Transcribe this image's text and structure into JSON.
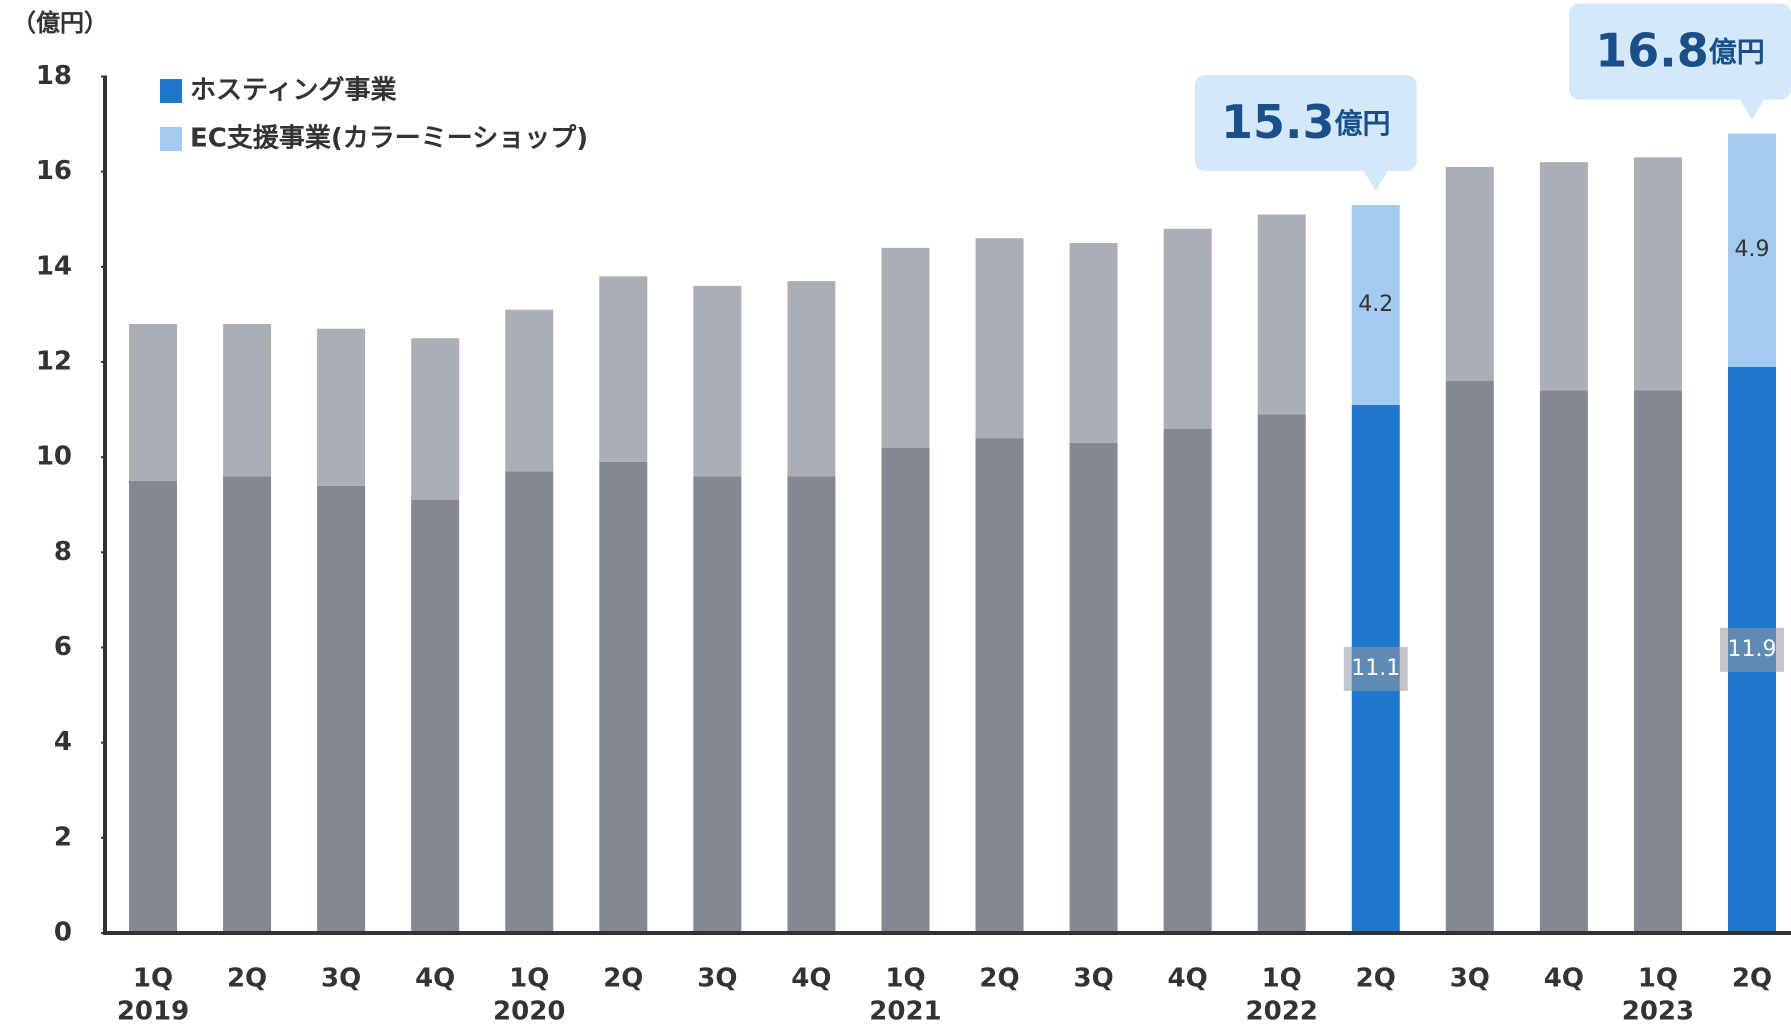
{
  "chart_data": {
    "type": "stacked_bar",
    "unit_label": "（億円）",
    "categories": [
      "1Q",
      "2Q",
      "3Q",
      "4Q",
      "1Q",
      "2Q",
      "3Q",
      "4Q",
      "1Q",
      "2Q",
      "3Q",
      "4Q",
      "1Q",
      "2Q",
      "3Q",
      "4Q",
      "1Q",
      "2Q"
    ],
    "x_group_labels": [
      "2019",
      null,
      null,
      null,
      "2020",
      null,
      null,
      null,
      "2021",
      null,
      null,
      null,
      "2022",
      null,
      null,
      null,
      "2023",
      null
    ],
    "series": [
      {
        "name": "ホスティング事業",
        "color": "#1f78cc",
        "colors": [
          "#838892",
          "#838892",
          "#838892",
          "#838892",
          "#838892",
          "#838892",
          "#838892",
          "#838892",
          "#838892",
          "#838892",
          "#838892",
          "#838892",
          "#838892",
          "#1f78cc",
          "#838892",
          "#838892",
          "#838892",
          "#1f78cc"
        ],
        "values": [
          9.5,
          9.6,
          9.4,
          9.1,
          9.7,
          9.9,
          9.6,
          9.6,
          10.2,
          10.4,
          10.3,
          10.6,
          10.9,
          11.1,
          11.6,
          11.4,
          11.4,
          11.9
        ],
        "value_labels": [
          null,
          null,
          null,
          null,
          null,
          null,
          null,
          null,
          null,
          null,
          null,
          null,
          null,
          "11.1",
          null,
          null,
          null,
          "11.9"
        ]
      },
      {
        "name": "EC支援事業(カラーミーショップ)",
        "color": "#a3cbef",
        "colors": [
          "#acaeb5",
          "#acaeb5",
          "#acaeb5",
          "#acaeb5",
          "#acaeb5",
          "#acaeb5",
          "#acaeb5",
          "#acaeb5",
          "#acaeb5",
          "#acaeb5",
          "#acaeb5",
          "#acaeb5",
          "#acaeb5",
          "#a3cbef",
          "#acaeb5",
          "#acaeb5",
          "#acaeb5",
          "#a3cbef"
        ],
        "values": [
          3.3,
          3.2,
          3.3,
          3.4,
          3.4,
          3.9,
          4.0,
          4.1,
          4.2,
          4.2,
          4.2,
          4.2,
          4.2,
          4.2,
          4.5,
          4.8,
          4.9,
          4.9
        ],
        "value_labels": [
          null,
          null,
          null,
          null,
          null,
          null,
          null,
          null,
          null,
          null,
          null,
          null,
          null,
          "4.2",
          null,
          null,
          null,
          "4.9"
        ]
      }
    ],
    "totals": [
      null,
      null,
      null,
      null,
      null,
      null,
      null,
      null,
      null,
      null,
      null,
      null,
      null,
      15.3,
      null,
      null,
      null,
      16.8
    ],
    "total_unit": "億円",
    "ylim": [
      0,
      18
    ],
    "yticks": [
      0,
      2,
      4,
      6,
      8,
      10,
      12,
      14,
      16,
      18
    ],
    "grid": false
  }
}
